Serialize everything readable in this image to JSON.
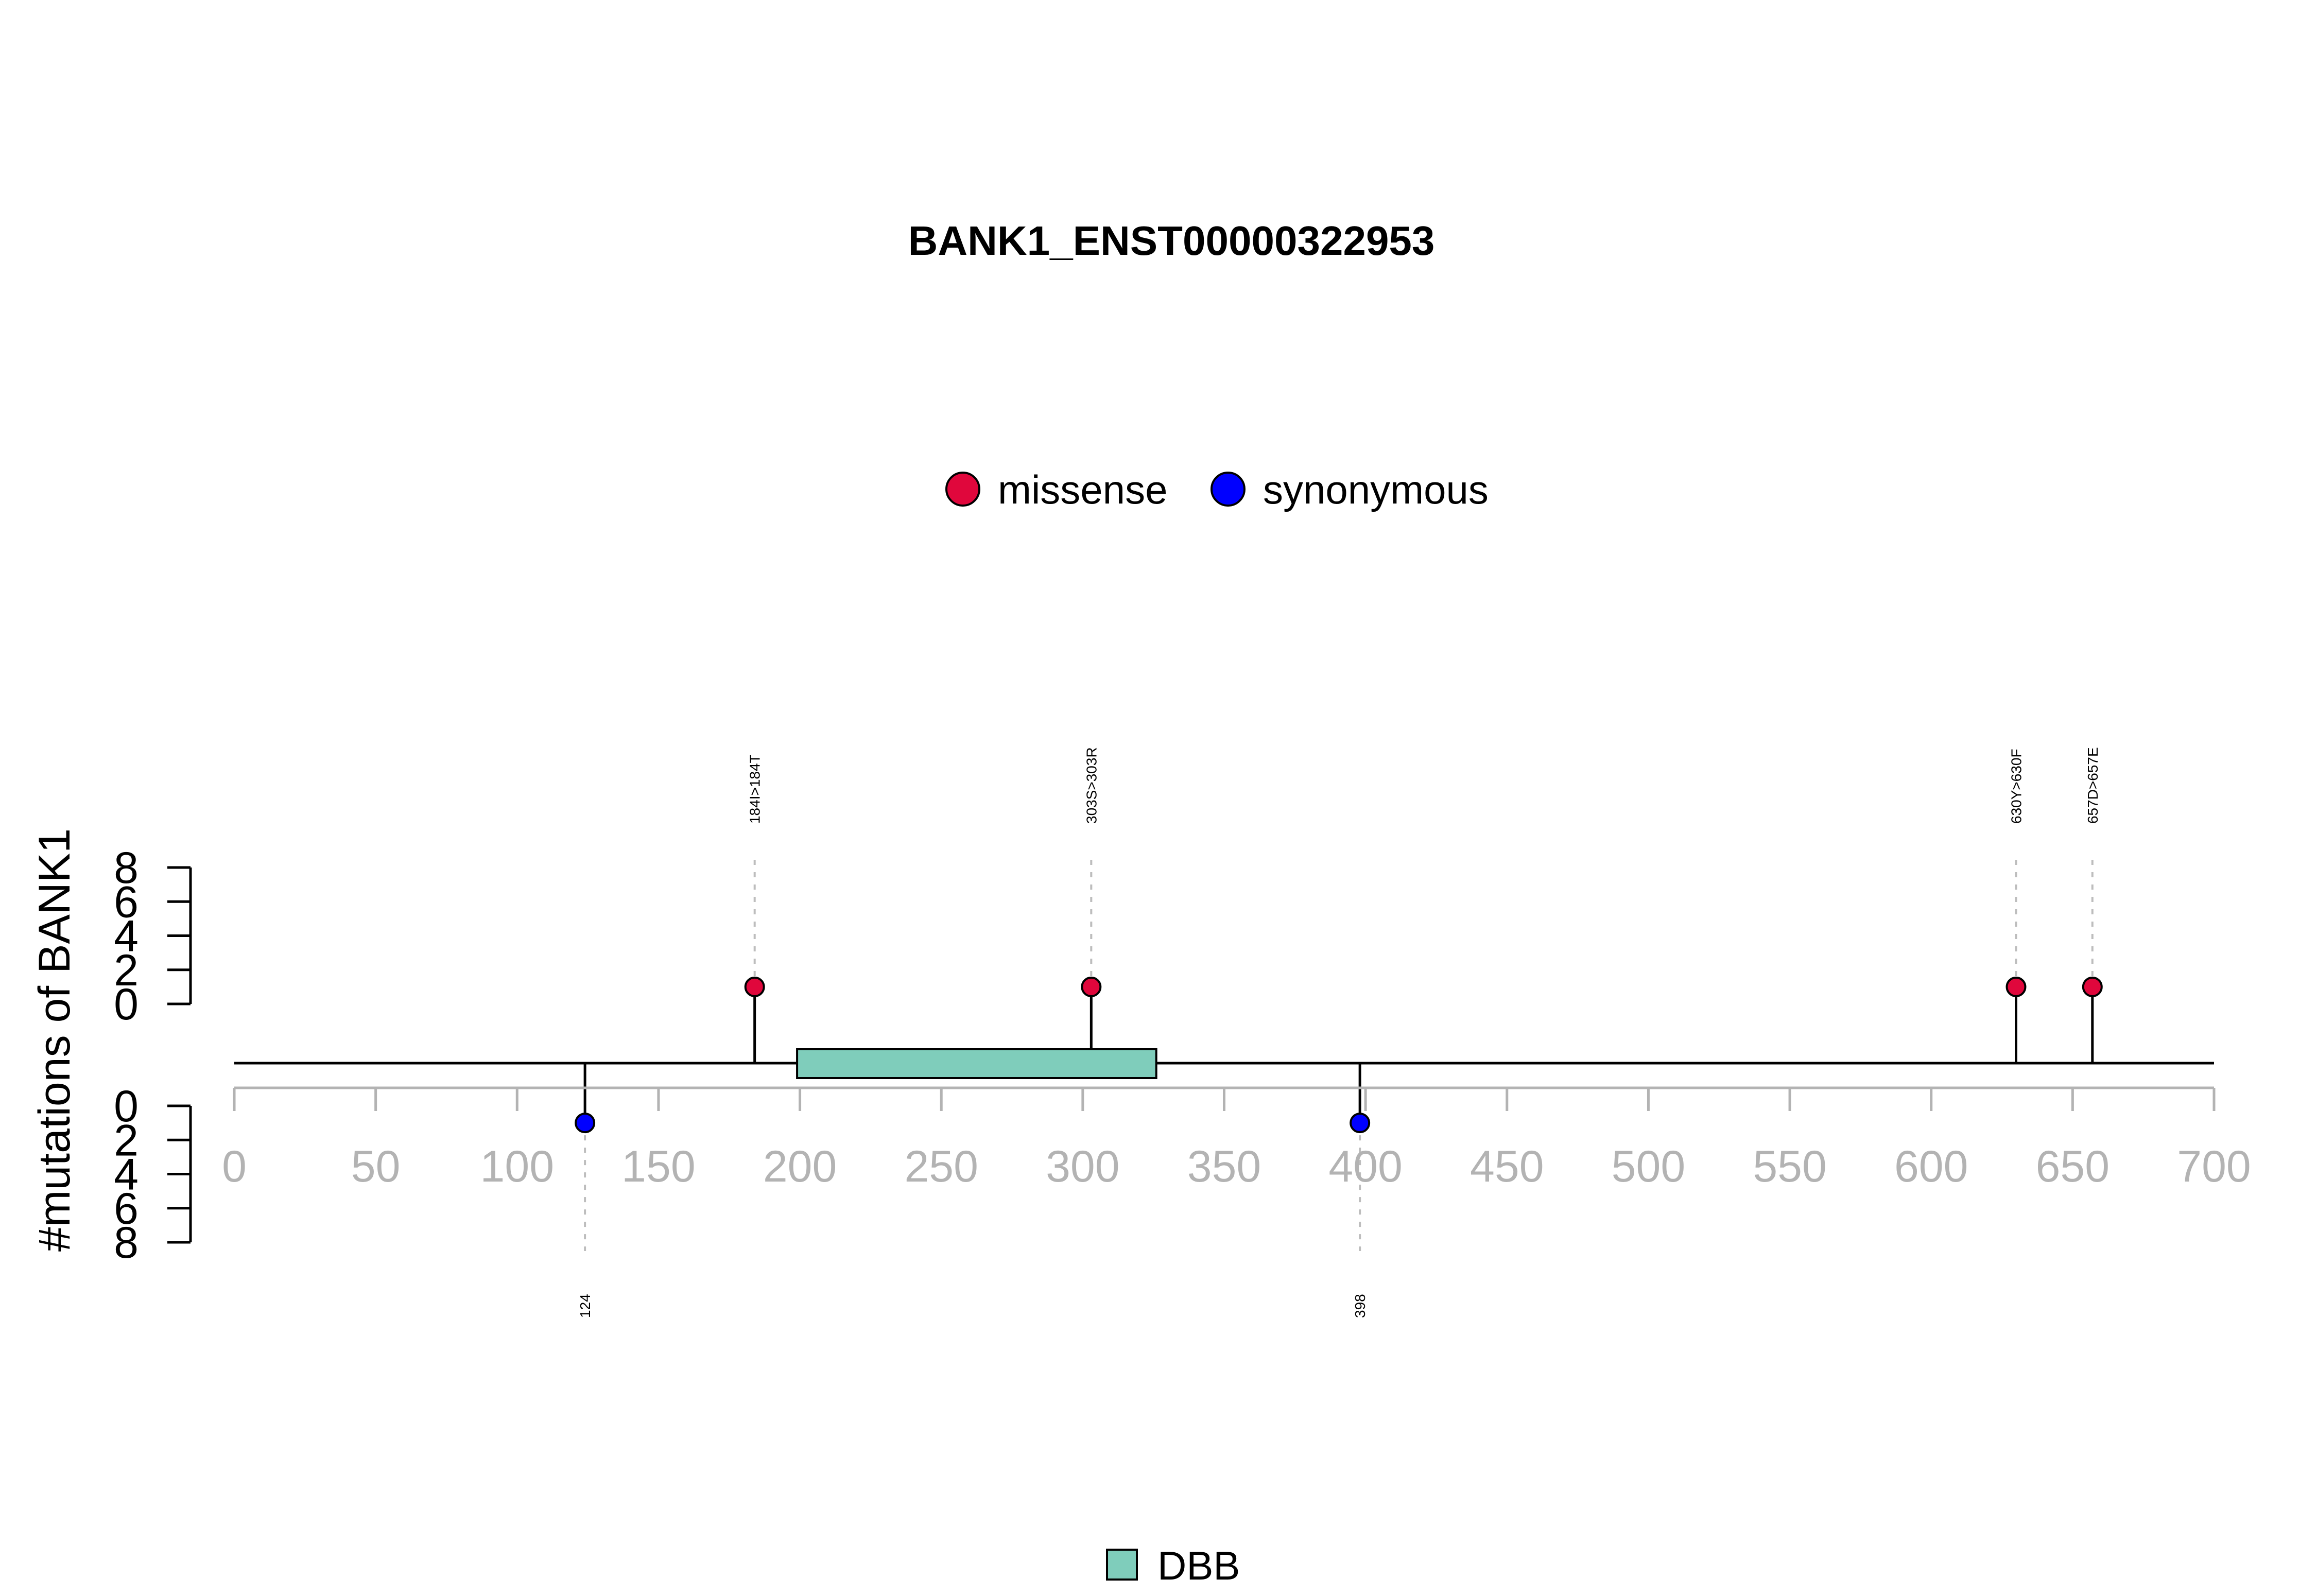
{
  "chart_data": {
    "type": "lollipop",
    "title": "BANK1_ENST00000322953",
    "ylabel": "#mutations of BANK1",
    "xlim": [
      0,
      700
    ],
    "x_ticks": [
      "0",
      "50",
      "100",
      "150",
      "200",
      "250",
      "300",
      "350",
      "400",
      "450",
      "500",
      "550",
      "600",
      "650",
      "700"
    ],
    "y_ticks_top": [
      "0",
      "2",
      "4",
      "6",
      "8"
    ],
    "y_ticks_bottom": [
      "0",
      "2",
      "4",
      "6",
      "8"
    ],
    "ylim": [
      0,
      8
    ],
    "legend_mutation_types": [
      {
        "name": "missense",
        "color": "#e0073c"
      },
      {
        "name": "synonymous",
        "color": "#0000ff"
      }
    ],
    "domains": [
      {
        "name": "DBB",
        "start": 199,
        "end": 326,
        "color": "#7fcdbb"
      }
    ],
    "mutations_top": [
      {
        "position": 184,
        "label": "184I>184T",
        "count": 1,
        "type": "missense"
      },
      {
        "position": 303,
        "label": "303S>303R",
        "count": 1,
        "type": "missense"
      },
      {
        "position": 630,
        "label": "630Y>630F",
        "count": 1,
        "type": "missense"
      },
      {
        "position": 657,
        "label": "657D>657E",
        "count": 1,
        "type": "missense"
      }
    ],
    "mutations_bottom": [
      {
        "position": 124,
        "label": "124",
        "count": 1,
        "type": "synonymous"
      },
      {
        "position": 398,
        "label": "398",
        "count": 1,
        "type": "synonymous"
      }
    ]
  }
}
